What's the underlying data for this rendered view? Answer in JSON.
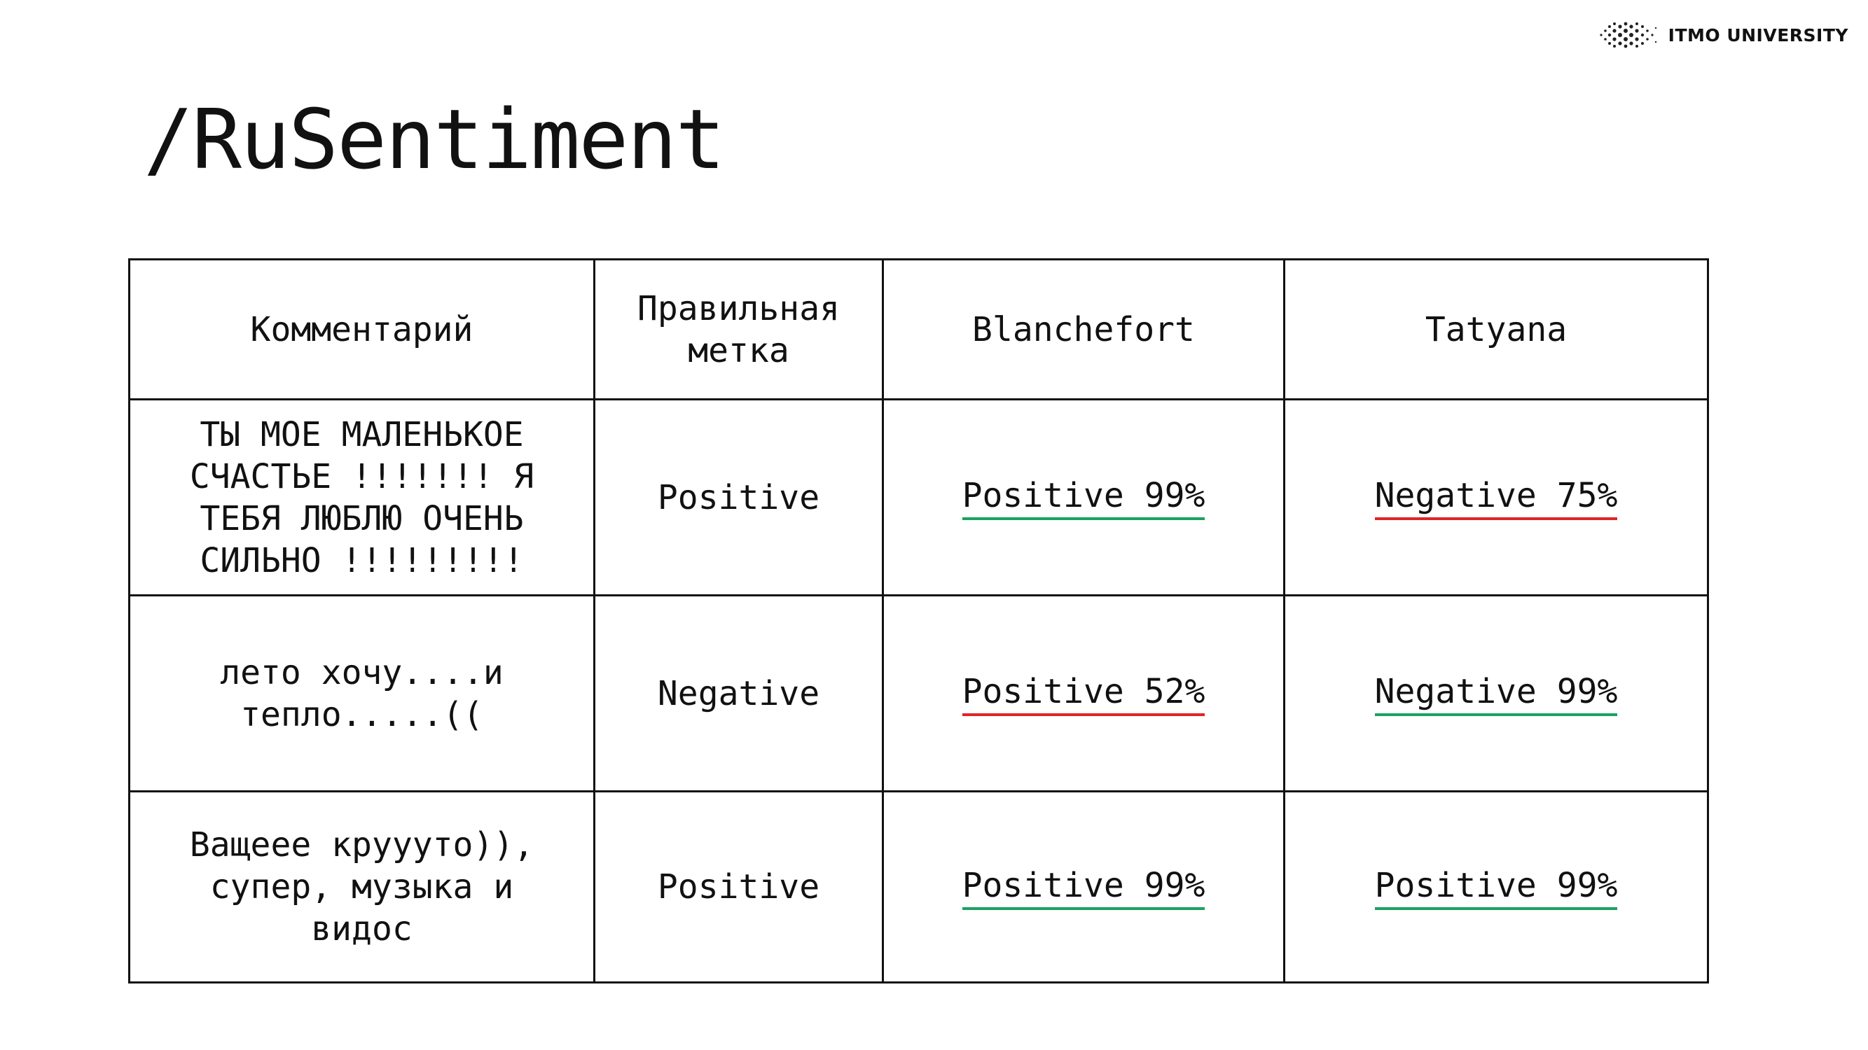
{
  "logo": {
    "text": "ITMO UNIVERSITY"
  },
  "slide": {
    "title": "/RuSentiment"
  },
  "table": {
    "headers": {
      "comment": "Комментарий",
      "label": "Правильная метка",
      "model1": "Blanchefort",
      "model2": "Tatyana"
    },
    "rows": [
      {
        "comment": "ТЫ МОЕ МАЛЕНЬКОЕ СЧАСТЬЕ !!!!!!! Я ТЕБЯ ЛЮБЛЮ ОЧЕНЬ СИЛЬНО !!!!!!!!!",
        "label": "Positive",
        "model1": "Positive 99%",
        "model2": "Negative 75%"
      },
      {
        "comment": "лето хочу....и тепло.....((",
        "label": "Negative",
        "model1": "Positive 52%",
        "model2": "Negative 99%"
      },
      {
        "comment": "Ващеее круууто)), супер, музыка и видос",
        "label": "Positive",
        "model1": "Positive 99%",
        "model2": "Positive 99%"
      }
    ]
  },
  "colors": {
    "correct": "#1aa260",
    "wrong": "#e02424"
  }
}
